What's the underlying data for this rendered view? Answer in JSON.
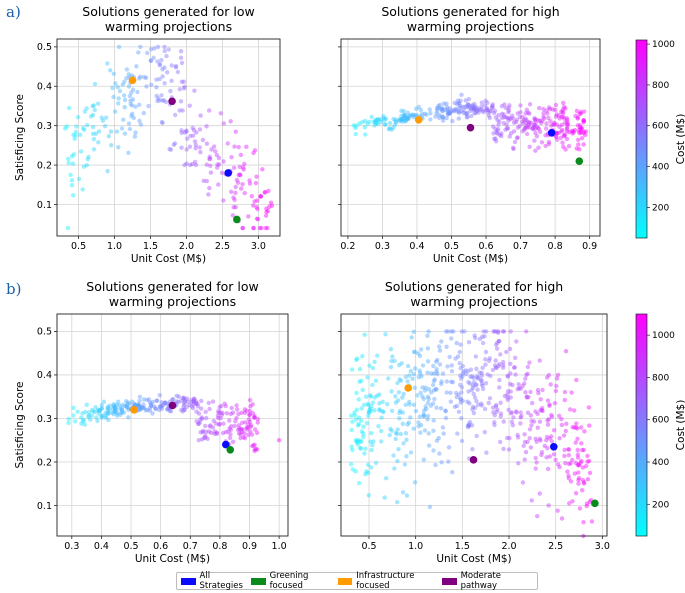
{
  "figure": {
    "panel_labels": [
      "a)",
      "b)"
    ],
    "colorbar_label": "Cost (M$)",
    "colormap": [
      "#00ffff",
      "#ff00ff"
    ],
    "legend": [
      {
        "label": "All Strategies",
        "color": "#0a0aff"
      },
      {
        "label": "Greening focused",
        "color": "#0a8a1a"
      },
      {
        "label": "Infrastructure focused",
        "color": "#ff9a00"
      },
      {
        "label": "Moderate pathway",
        "color": "#800080"
      }
    ]
  },
  "chart_data": [
    {
      "type": "scatter",
      "panel": "a",
      "title_lines": [
        "Solutions generated for low",
        "warming projections"
      ],
      "xlabel": "Unit Cost (M$)",
      "ylabel": "Satisficing Score",
      "xlim": [
        0.2,
        3.3
      ],
      "ylim": [
        0.02,
        0.52
      ],
      "xticks": [
        0.5,
        1.0,
        1.5,
        2.0,
        2.5,
        3.0
      ],
      "xtick_labels": [
        "0.5",
        "1.0",
        "1.5",
        "2.0",
        "2.5",
        "3.0"
      ],
      "yticks": [
        0.1,
        0.2,
        0.3,
        0.4,
        0.5
      ],
      "ytick_labels": [
        "0.1",
        "0.2",
        "0.3",
        "0.4",
        "0.5"
      ],
      "cost_range": [
        50,
        1020
      ],
      "cloud_shape": "low",
      "highlights": [
        {
          "name": "Infrastructure focused",
          "x": 1.25,
          "y": 0.415,
          "color": "#ff9a00"
        },
        {
          "name": "Moderate pathway",
          "x": 1.8,
          "y": 0.362,
          "color": "#800080"
        },
        {
          "name": "All Strategies",
          "x": 2.58,
          "y": 0.18,
          "color": "#0a0aff"
        },
        {
          "name": "Greening focused",
          "x": 2.7,
          "y": 0.062,
          "color": "#0a8a1a"
        }
      ]
    },
    {
      "type": "scatter",
      "panel": "a",
      "title_lines": [
        "Solutions generated for high",
        "warming projections"
      ],
      "xlabel": "Unit Cost (M$)",
      "ylabel": "",
      "xlim": [
        0.18,
        0.93
      ],
      "ylim": [
        0.02,
        0.52
      ],
      "xticks": [
        0.2,
        0.3,
        0.4,
        0.5,
        0.6,
        0.7,
        0.8,
        0.9
      ],
      "xtick_labels": [
        "0.2",
        "0.3",
        "0.4",
        "0.5",
        "0.6",
        "0.7",
        "0.8",
        "0.9"
      ],
      "yticks": [
        0.1,
        0.2,
        0.3,
        0.4,
        0.5
      ],
      "ytick_labels": [],
      "cost_range": [
        50,
        1020
      ],
      "cloud_shape": "arc",
      "highlights": [
        {
          "name": "Infrastructure focused",
          "x": 0.405,
          "y": 0.315,
          "color": "#ff9a00"
        },
        {
          "name": "Moderate pathway",
          "x": 0.555,
          "y": 0.295,
          "color": "#800080"
        },
        {
          "name": "All Strategies",
          "x": 0.79,
          "y": 0.282,
          "color": "#0a0aff"
        },
        {
          "name": "Greening focused",
          "x": 0.87,
          "y": 0.21,
          "color": "#0a8a1a"
        }
      ]
    },
    {
      "type": "scatter",
      "panel": "b",
      "title_lines": [
        "Solutions generated for low",
        "warming projections"
      ],
      "xlabel": "Unit Cost (M$)",
      "ylabel": "Satisficing Score",
      "xlim": [
        0.25,
        1.03
      ],
      "ylim": [
        0.03,
        0.54
      ],
      "xticks": [
        0.3,
        0.4,
        0.5,
        0.6,
        0.7,
        0.8,
        0.9,
        1.0
      ],
      "xtick_labels": [
        "0.3",
        "0.4",
        "0.5",
        "0.6",
        "0.7",
        "0.8",
        "0.9",
        "1.0"
      ],
      "yticks": [
        0.1,
        0.2,
        0.3,
        0.4,
        0.5
      ],
      "ytick_labels": [
        "0.1",
        "0.2",
        "0.3",
        "0.4",
        "0.5"
      ],
      "cost_range": [
        50,
        1100
      ],
      "cloud_shape": "arc_b",
      "highlights": [
        {
          "name": "Infrastructure focused",
          "x": 0.51,
          "y": 0.32,
          "color": "#ff9a00"
        },
        {
          "name": "Moderate pathway",
          "x": 0.64,
          "y": 0.33,
          "color": "#800080"
        },
        {
          "name": "All Strategies",
          "x": 0.82,
          "y": 0.24,
          "color": "#0a0aff"
        },
        {
          "name": "Greening focused",
          "x": 0.835,
          "y": 0.228,
          "color": "#0a8a1a"
        }
      ]
    },
    {
      "type": "scatter",
      "panel": "b",
      "title_lines": [
        "Solutions generated for high",
        "warming projections"
      ],
      "xlabel": "Unit Cost (M$)",
      "ylabel": "",
      "xlim": [
        0.2,
        3.05
      ],
      "ylim": [
        0.03,
        0.54
      ],
      "xticks": [
        0.5,
        1.0,
        1.5,
        2.0,
        2.5,
        3.0
      ],
      "xtick_labels": [
        "0.5",
        "1.0",
        "1.5",
        "2.0",
        "2.5",
        "3.0"
      ],
      "yticks": [
        0.1,
        0.2,
        0.3,
        0.4,
        0.5
      ],
      "ytick_labels": [],
      "cost_range": [
        50,
        1100
      ],
      "cloud_shape": "high",
      "highlights": [
        {
          "name": "Infrastructure focused",
          "x": 0.92,
          "y": 0.37,
          "color": "#ff9a00"
        },
        {
          "name": "Moderate pathway",
          "x": 1.62,
          "y": 0.205,
          "color": "#800080"
        },
        {
          "name": "All Strategies",
          "x": 2.48,
          "y": 0.235,
          "color": "#0a0aff"
        },
        {
          "name": "Greening focused",
          "x": 2.92,
          "y": 0.105,
          "color": "#0a8a1a"
        }
      ]
    }
  ],
  "colorbars": [
    {
      "panel": "a",
      "range": [
        50,
        1020
      ],
      "ticks": [
        200,
        400,
        600,
        800,
        1000
      ],
      "tick_labels": [
        "200",
        "400",
        "600",
        "800",
        "1000"
      ]
    },
    {
      "panel": "b",
      "range": [
        50,
        1100
      ],
      "ticks": [
        200,
        400,
        600,
        800,
        1000
      ],
      "tick_labels": [
        "200",
        "400",
        "600",
        "800",
        "1000"
      ]
    }
  ]
}
